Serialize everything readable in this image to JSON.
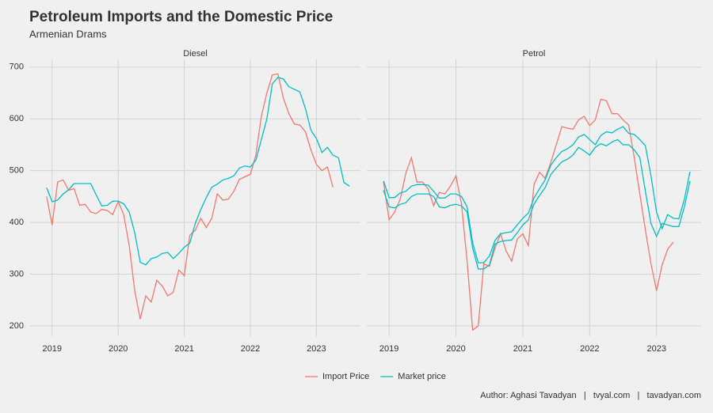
{
  "title": "Petroleum Imports and the Domestic Price",
  "subtitle": "Armenian Drams",
  "caption": "Author: Aghasi Tavadyan   |   tvyal.com   |   tavadyan.com",
  "chart_data": [
    {
      "type": "line",
      "title": "Diesel",
      "x": [
        "2018-12",
        "2019-01",
        "2019-02",
        "2019-03",
        "2019-04",
        "2019-05",
        "2019-06",
        "2019-07",
        "2019-08",
        "2019-09",
        "2019-10",
        "2019-11",
        "2019-12",
        "2020-01",
        "2020-02",
        "2020-03",
        "2020-04",
        "2020-05",
        "2020-06",
        "2020-07",
        "2020-08",
        "2020-09",
        "2020-10",
        "2020-11",
        "2020-12",
        "2021-01",
        "2021-02",
        "2021-03",
        "2021-04",
        "2021-05",
        "2021-06",
        "2021-07",
        "2021-08",
        "2021-09",
        "2021-10",
        "2021-11",
        "2021-12",
        "2022-01",
        "2022-02",
        "2022-03",
        "2022-04",
        "2022-05",
        "2022-06",
        "2022-07",
        "2022-08",
        "2022-09",
        "2022-10",
        "2022-11",
        "2022-12",
        "2023-01",
        "2023-02",
        "2023-03",
        "2023-04",
        "2023-05",
        "2023-06",
        "2023-07"
      ],
      "series": [
        {
          "name": "Import Price",
          "color": "#F8766D",
          "values": [
            450,
            395,
            478,
            482,
            462,
            465,
            433,
            435,
            420,
            417,
            425,
            423,
            415,
            440,
            415,
            355,
            268,
            213,
            258,
            246,
            288,
            277,
            258,
            265,
            308,
            297,
            375,
            385,
            408,
            390,
            408,
            455,
            443,
            445,
            460,
            483,
            488,
            493,
            530,
            605,
            650,
            685,
            687,
            640,
            610,
            590,
            588,
            575,
            540,
            512,
            500,
            507,
            468,
            null,
            null,
            null
          ]
        },
        {
          "name": "Market price",
          "color": "#00BFC4",
          "values": [
            467,
            440,
            443,
            455,
            463,
            475,
            475,
            475,
            475,
            453,
            432,
            433,
            441,
            441,
            436,
            420,
            380,
            323,
            318,
            330,
            333,
            340,
            342,
            330,
            340,
            352,
            360,
            398,
            425,
            448,
            468,
            474,
            482,
            485,
            490,
            505,
            509,
            507,
            520,
            560,
            600,
            668,
            680,
            677,
            662,
            657,
            652,
            620,
            578,
            562,
            535,
            545,
            530,
            525,
            477,
            470
          ]
        }
      ],
      "xlim": [
        "2018-09",
        "2023-09"
      ],
      "xticks": [
        {
          "value": "2019-01",
          "label": "2019"
        },
        {
          "value": "2020-01",
          "label": "2020"
        },
        {
          "value": "2021-01",
          "label": "2021"
        },
        {
          "value": "2022-01",
          "label": "2022"
        },
        {
          "value": "2023-01",
          "label": "2023"
        }
      ],
      "ylim": [
        180,
        715
      ],
      "yticks": [
        200,
        300,
        400,
        500,
        600,
        700
      ],
      "grid": true
    },
    {
      "type": "line",
      "title": "Petrol",
      "x": [
        "2018-12",
        "2019-01",
        "2019-02",
        "2019-03",
        "2019-04",
        "2019-05",
        "2019-06",
        "2019-07",
        "2019-08",
        "2019-09",
        "2019-10",
        "2019-11",
        "2019-12",
        "2020-01",
        "2020-02",
        "2020-03",
        "2020-04",
        "2020-05",
        "2020-06",
        "2020-07",
        "2020-08",
        "2020-09",
        "2020-10",
        "2020-11",
        "2020-12",
        "2021-01",
        "2021-02",
        "2021-03",
        "2021-04",
        "2021-05",
        "2021-06",
        "2021-07",
        "2021-08",
        "2021-09",
        "2021-10",
        "2021-11",
        "2021-12",
        "2022-01",
        "2022-02",
        "2022-03",
        "2022-04",
        "2022-05",
        "2022-06",
        "2022-07",
        "2022-08",
        "2022-09",
        "2022-10",
        "2022-11",
        "2022-12",
        "2023-01",
        "2023-02",
        "2023-03",
        "2023-04",
        "2023-05",
        "2023-06",
        "2023-07"
      ],
      "series": [
        {
          "name": "Import Price",
          "color": "#F8766D",
          "values": [
            478,
            405,
            420,
            445,
            495,
            525,
            478,
            478,
            465,
            432,
            458,
            455,
            470,
            490,
            435,
            325,
            192,
            200,
            320,
            315,
            350,
            378,
            345,
            325,
            368,
            378,
            355,
            473,
            497,
            485,
            515,
            550,
            585,
            582,
            580,
            598,
            605,
            587,
            598,
            638,
            635,
            610,
            610,
            598,
            588,
            525,
            455,
            385,
            320,
            268,
            318,
            348,
            362,
            null,
            null,
            null
          ]
        },
        {
          "name": "Market price",
          "color": "#00BFC4",
          "values": [
            480,
            448,
            448,
            457,
            460,
            470,
            473,
            473,
            472,
            460,
            447,
            447,
            455,
            455,
            450,
            430,
            360,
            322,
            322,
            335,
            365,
            378,
            380,
            382,
            395,
            408,
            418,
            447,
            465,
            482,
            510,
            525,
            537,
            542,
            550,
            565,
            570,
            560,
            550,
            568,
            575,
            573,
            580,
            585,
            572,
            570,
            560,
            548,
            490,
            420,
            388,
            415,
            408,
            407,
            445,
            498
          ]
        },
        {
          "name": "Market price",
          "color": "#00BFC4",
          "values": [
            462,
            430,
            428,
            435,
            438,
            450,
            455,
            455,
            455,
            450,
            430,
            428,
            433,
            435,
            432,
            420,
            350,
            310,
            310,
            318,
            358,
            363,
            365,
            366,
            380,
            395,
            405,
            435,
            452,
            467,
            492,
            505,
            517,
            522,
            530,
            545,
            538,
            530,
            545,
            552,
            548,
            555,
            560,
            550,
            550,
            540,
            525,
            460,
            398,
            373,
            398,
            395,
            392,
            392,
            430,
            480
          ]
        }
      ],
      "xlim": [
        "2018-09",
        "2023-09"
      ],
      "xticks": [
        {
          "value": "2019-01",
          "label": "2019"
        },
        {
          "value": "2020-01",
          "label": "2020"
        },
        {
          "value": "2021-01",
          "label": "2021"
        },
        {
          "value": "2022-01",
          "label": "2022"
        },
        {
          "value": "2023-01",
          "label": "2023"
        }
      ],
      "ylim": [
        180,
        715
      ],
      "yticks": [
        200,
        300,
        400,
        500,
        600,
        700
      ],
      "grid": true
    }
  ]
}
